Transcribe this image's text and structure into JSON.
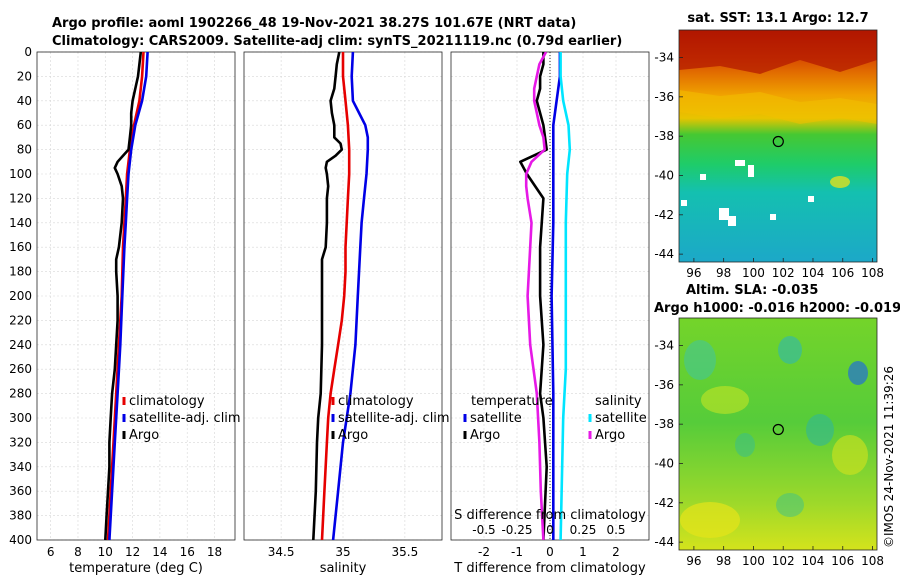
{
  "header": {
    "title_line1": "Argo profile: aoml 1902266_48 19-Nov-2021 38.27S 101.67E (NRT data)",
    "title_line2": "Climatology: CARS2009. Satellite-adj clim: synTS_20211119.nc (0.79d earlier)"
  },
  "colors": {
    "argo": "#000000",
    "climatology": "#e60000",
    "satellite": "#0000e6",
    "satellite_salinity": "#00e5ff",
    "argo_salinity": "#e619e6"
  },
  "chart_data": [
    {
      "type": "line",
      "name": "temperature-profile",
      "xlabel": "temperature (deg C)",
      "ylabel": "",
      "xlim": [
        5,
        19.5
      ],
      "ylim": [
        400,
        0
      ],
      "x_ticks": [
        "6",
        "8",
        "10",
        "12",
        "14",
        "16",
        "18"
      ],
      "y_ticks": [
        "0",
        "20",
        "40",
        "60",
        "80",
        "100",
        "120",
        "140",
        "160",
        "180",
        "200",
        "220",
        "240",
        "260",
        "280",
        "300",
        "320",
        "340",
        "360",
        "380",
        "400"
      ],
      "legend": [
        "climatology",
        "satellite-adj. clim",
        "Argo"
      ],
      "series": [
        {
          "name": "climatology",
          "depth": [
            0,
            20,
            40,
            60,
            80,
            100,
            120,
            140,
            160,
            200,
            240,
            280,
            320,
            360,
            400
          ],
          "values": [
            12.8,
            12.7,
            12.5,
            12.1,
            11.8,
            11.6,
            11.5,
            11.4,
            11.3,
            11.2,
            11.0,
            10.8,
            10.6,
            10.4,
            10.2
          ]
        },
        {
          "name": "satellite-adj. clim",
          "depth": [
            0,
            20,
            40,
            60,
            80,
            100,
            120,
            140,
            160,
            200,
            240,
            280,
            320,
            360,
            400
          ],
          "values": [
            13.1,
            13.0,
            12.7,
            12.2,
            11.9,
            11.7,
            11.6,
            11.5,
            11.4,
            11.25,
            11.1,
            10.9,
            10.7,
            10.5,
            10.3
          ]
        },
        {
          "name": "Argo",
          "depth": [
            0,
            10,
            20,
            30,
            40,
            50,
            60,
            70,
            80,
            85,
            90,
            95,
            100,
            110,
            120,
            140,
            160,
            170,
            180,
            200,
            220,
            240,
            260,
            280,
            300,
            320,
            340,
            360,
            380,
            400
          ],
          "values": [
            12.6,
            12.5,
            12.4,
            12.2,
            12.0,
            11.9,
            11.9,
            11.8,
            11.7,
            11.3,
            10.9,
            10.7,
            10.9,
            11.2,
            11.3,
            11.2,
            11.0,
            10.8,
            10.8,
            10.9,
            10.9,
            10.8,
            10.7,
            10.5,
            10.4,
            10.3,
            10.3,
            10.2,
            10.1,
            10.0
          ]
        }
      ]
    },
    {
      "type": "line",
      "name": "salinity-profile",
      "xlabel": "salinity",
      "ylabel": "",
      "xlim": [
        34.2,
        35.8
      ],
      "ylim": [
        400,
        0
      ],
      "x_ticks": [
        "34.5",
        "35",
        "35.5"
      ],
      "legend": [
        "climatology",
        "satellite-adj. clim",
        "Argo"
      ],
      "series": [
        {
          "name": "climatology",
          "depth": [
            0,
            20,
            40,
            60,
            80,
            100,
            120,
            140,
            160,
            180,
            200,
            220,
            240,
            260,
            280,
            300,
            320,
            360,
            400
          ],
          "values": [
            35.0,
            35.0,
            35.02,
            35.04,
            35.05,
            35.05,
            35.04,
            35.03,
            35.02,
            35.02,
            35.01,
            34.99,
            34.96,
            34.93,
            34.9,
            34.88,
            34.87,
            34.85,
            34.83
          ]
        },
        {
          "name": "satellite-adj. clim",
          "depth": [
            0,
            20,
            40,
            50,
            60,
            70,
            80,
            100,
            120,
            140,
            160,
            200,
            240,
            280,
            300,
            320,
            360,
            400
          ],
          "values": [
            35.08,
            35.07,
            35.08,
            35.13,
            35.18,
            35.2,
            35.2,
            35.19,
            35.17,
            35.15,
            35.14,
            35.12,
            35.1,
            35.06,
            35.03,
            35.0,
            34.96,
            34.92
          ]
        },
        {
          "name": "Argo",
          "depth": [
            0,
            10,
            20,
            30,
            40,
            50,
            60,
            70,
            75,
            80,
            85,
            90,
            95,
            100,
            110,
            120,
            140,
            160,
            170,
            200,
            240,
            280,
            300,
            320,
            360,
            400
          ],
          "values": [
            34.97,
            34.95,
            34.94,
            34.93,
            34.9,
            34.91,
            34.93,
            34.93,
            34.98,
            34.99,
            34.94,
            34.87,
            34.86,
            34.87,
            34.88,
            34.87,
            34.87,
            34.86,
            34.83,
            34.83,
            34.83,
            34.82,
            34.8,
            34.79,
            34.78,
            34.76
          ]
        }
      ]
    },
    {
      "type": "line",
      "name": "difference-profile",
      "xlabel": "T difference from climatology",
      "xlabel_top": "S difference from climatology",
      "xlim": [
        -3,
        3
      ],
      "ylim": [
        400,
        0
      ],
      "x_ticks": [
        "-2",
        "-1",
        "0",
        "1",
        "2"
      ],
      "s_ticks": [
        "-0.5",
        "-0.25",
        "0",
        "0.25",
        "0.5"
      ],
      "legend_temperature": {
        "heading": "temperature",
        "items": [
          "satellite",
          "Argo"
        ]
      },
      "legend_salinity": {
        "heading": "salinity",
        "items": [
          "satellite",
          "Argo"
        ]
      },
      "series": [
        {
          "name": "temperature satellite",
          "depth": [
            0,
            20,
            40,
            60,
            80,
            100,
            140,
            200,
            280,
            340,
            400
          ],
          "values": [
            0.3,
            0.3,
            0.2,
            0.1,
            0.1,
            0.1,
            0.1,
            0.05,
            0.1,
            0.1,
            0.1
          ]
        },
        {
          "name": "temperature Argo",
          "depth": [
            0,
            10,
            20,
            30,
            40,
            60,
            80,
            90,
            100,
            120,
            160,
            200,
            240,
            280,
            300,
            340,
            400
          ],
          "values": [
            -0.2,
            -0.2,
            -0.3,
            -0.3,
            -0.4,
            -0.2,
            -0.1,
            -0.9,
            -0.7,
            -0.2,
            -0.3,
            -0.3,
            -0.2,
            -0.3,
            -0.2,
            -0.1,
            -0.2
          ]
        },
        {
          "name": "salinity satellite",
          "depth": [
            0,
            20,
            40,
            60,
            80,
            100,
            140,
            200,
            260,
            300,
            400
          ],
          "values": [
            0.08,
            0.08,
            0.1,
            0.14,
            0.15,
            0.13,
            0.12,
            0.12,
            0.12,
            0.1,
            0.08
          ]
        },
        {
          "name": "salinity Argo",
          "depth": [
            0,
            10,
            20,
            30,
            40,
            50,
            60,
            70,
            80,
            90,
            100,
            110,
            120,
            140,
            160,
            200,
            240,
            280,
            320,
            360,
            400
          ],
          "values": [
            -0.03,
            -0.08,
            -0.1,
            -0.12,
            -0.12,
            -0.1,
            -0.08,
            -0.05,
            -0.04,
            -0.14,
            -0.18,
            -0.18,
            -0.17,
            -0.14,
            -0.15,
            -0.17,
            -0.15,
            -0.1,
            -0.08,
            -0.07,
            -0.05
          ]
        }
      ]
    },
    {
      "type": "heatmap",
      "name": "sst-map",
      "title": "sat. SST: 13.1 Argo: 12.7",
      "x_ticks": [
        "96",
        "98",
        "100",
        "102",
        "104",
        "106",
        "108"
      ],
      "y_ticks": [
        "-34",
        "-36",
        "-38",
        "-40",
        "-42",
        "-44"
      ],
      "xlim": [
        95,
        108.3
      ],
      "ylim": [
        -44.4,
        -32.6
      ],
      "marker": {
        "lon": 101.67,
        "lat": -38.27
      }
    },
    {
      "type": "heatmap",
      "name": "sla-map",
      "title_line1": "Altim. SLA: -0.035",
      "title_line2": "Argo h1000: -0.016 h2000: -0.019",
      "x_ticks": [
        "96",
        "98",
        "100",
        "102",
        "104",
        "106",
        "108"
      ],
      "y_ticks": [
        "-34",
        "-36",
        "-38",
        "-40",
        "-42",
        "-44"
      ],
      "xlim": [
        95,
        108.3
      ],
      "ylim": [
        -44.4,
        -32.6
      ],
      "marker": {
        "lon": 101.67,
        "lat": -38.27
      }
    }
  ],
  "footer": {
    "copyright": "©IMOS 24-Nov-2021 11:39:26"
  }
}
